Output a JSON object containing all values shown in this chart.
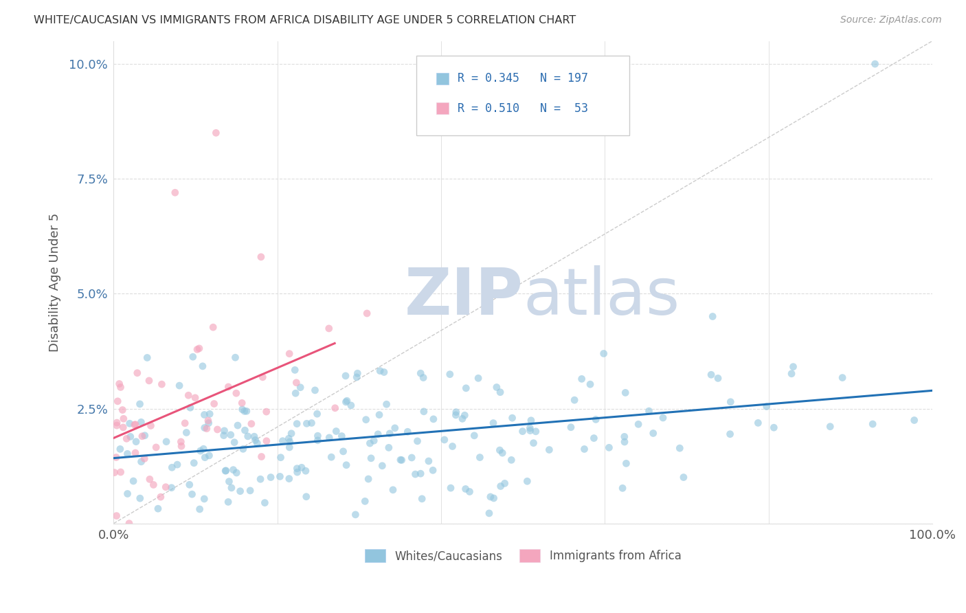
{
  "title": "WHITE/CAUCASIAN VS IMMIGRANTS FROM AFRICA DISABILITY AGE UNDER 5 CORRELATION CHART",
  "source": "Source: ZipAtlas.com",
  "ylabel": "Disability Age Under 5",
  "legend_label1": "Whites/Caucasians",
  "legend_label2": "Immigrants from Africa",
  "legend_r1": "R = 0.345",
  "legend_n1": "N = 197",
  "legend_r2": "R = 0.510",
  "legend_n2": "N =  53",
  "blue_color": "#92c5de",
  "pink_color": "#f4a6be",
  "blue_line_color": "#2171b5",
  "pink_line_color": "#e8547a",
  "diagonal_color": "#cccccc",
  "watermark_zip": "ZIP",
  "watermark_atlas": "atlas",
  "watermark_color": "#ccd8e8",
  "background": "#ffffff",
  "grid_color": "#dddddd",
  "seed": 42,
  "n_blue": 197,
  "n_pink": 53,
  "r_blue": 0.345,
  "r_pink": 0.51,
  "xmin": 0.0,
  "xmax": 1.0,
  "ymin": 0.0,
  "ymax": 0.105,
  "blue_scatter_alpha": 0.6,
  "pink_scatter_alpha": 0.65,
  "scatter_size": 60,
  "legend_text_color": "#2b6cb0",
  "title_color": "#333333",
  "axis_label_color": "#555555",
  "ytick_color": "#4477aa",
  "xtick_color": "#555555"
}
